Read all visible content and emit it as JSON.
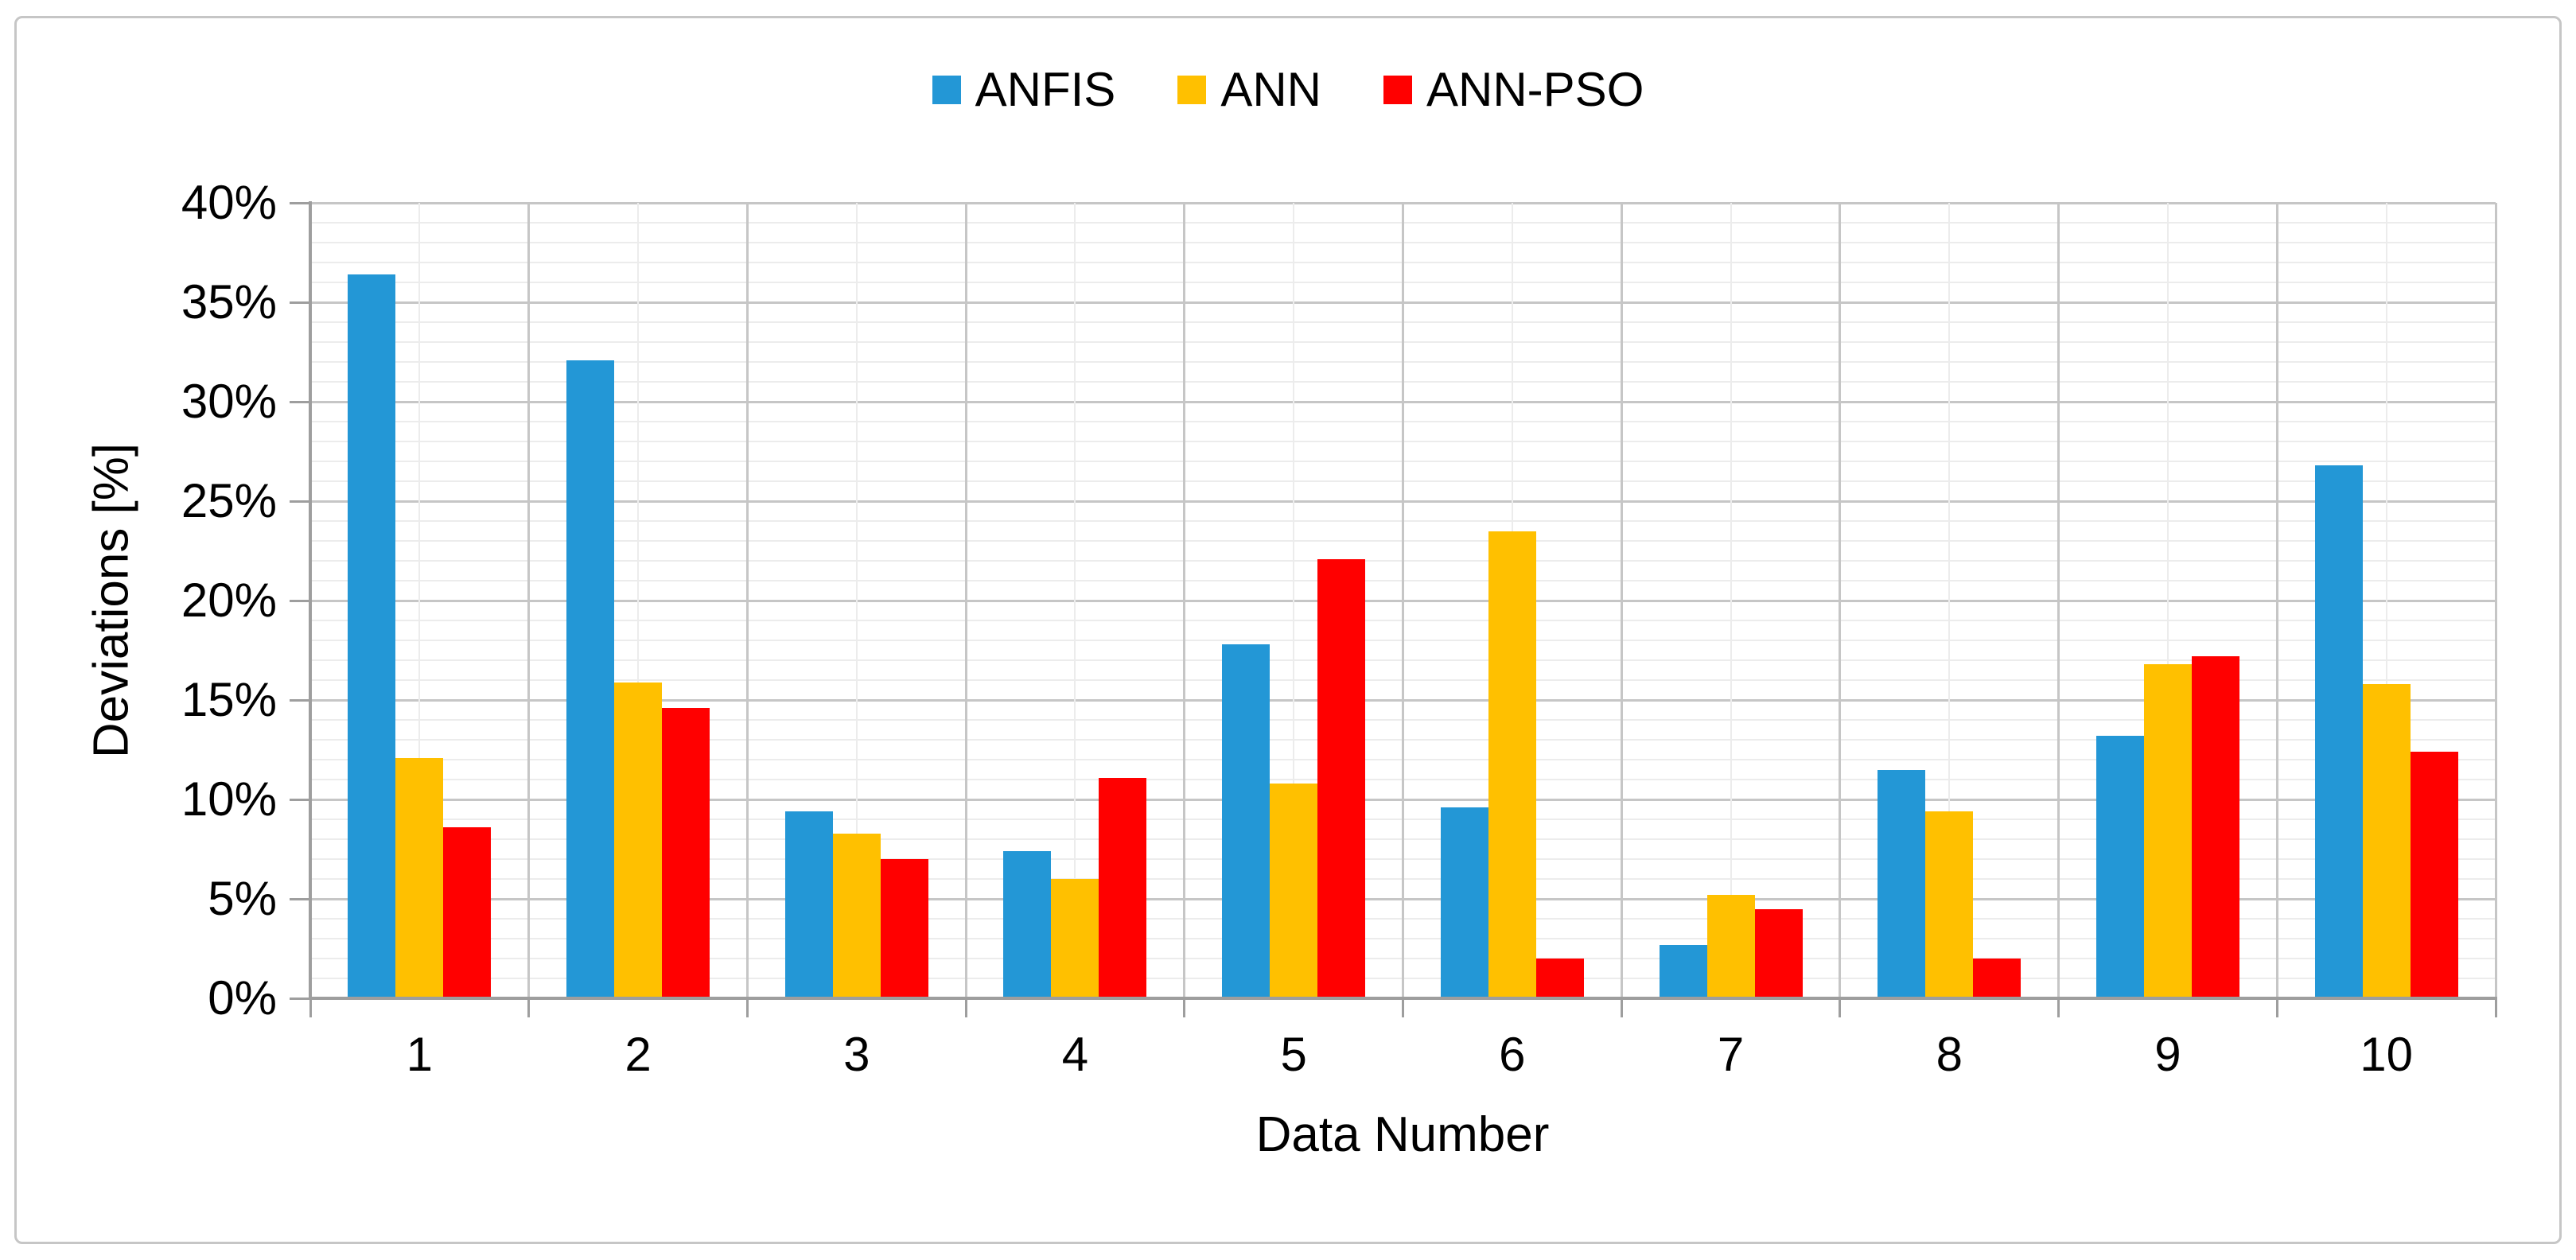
{
  "figure": {
    "background": "#ffffff",
    "border_color": "#c6c6c6"
  },
  "colors": {
    "axis_line": "#9e9e9e",
    "major_grid": "#c6c6c6",
    "minor_grid": "#ececec",
    "text": "#000000"
  },
  "chart_data": {
    "type": "bar",
    "title": "",
    "xlabel": "Data Number",
    "ylabel": "Deviations [%]",
    "categories": [
      "1",
      "2",
      "3",
      "4",
      "5",
      "6",
      "7",
      "8",
      "9",
      "10"
    ],
    "series": [
      {
        "name": "ANFIS",
        "color": "#2397d6",
        "values": [
          36.4,
          32.1,
          9.4,
          7.4,
          17.8,
          9.6,
          2.7,
          11.5,
          13.2,
          26.8
        ]
      },
      {
        "name": "ANN",
        "color": "#ffc000",
        "values": [
          12.1,
          15.9,
          8.3,
          6.0,
          10.8,
          23.5,
          5.2,
          9.4,
          16.8,
          15.8
        ]
      },
      {
        "name": "ANN-PSO",
        "color": "#ff0000",
        "values": [
          8.6,
          14.6,
          7.0,
          11.1,
          22.1,
          2.0,
          4.5,
          2.0,
          17.2,
          12.4
        ]
      }
    ],
    "ylim": [
      0,
      40
    ],
    "ytick_step": 5,
    "yminor_step": 1,
    "ytick_labels": [
      "0%",
      "5%",
      "10%",
      "15%",
      "20%",
      "25%",
      "30%",
      "35%",
      "40%"
    ],
    "grid": "major+minor, horizontal and vertical",
    "legend_position": "top-center"
  }
}
